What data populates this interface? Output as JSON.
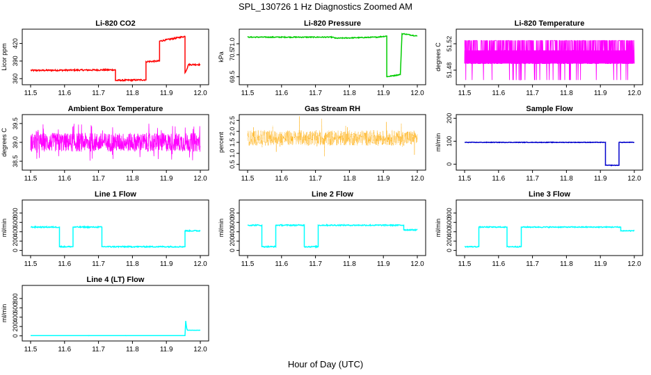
{
  "figure": {
    "title": "SPL_130726  1 Hz Diagnostics Zoomed AM",
    "xlabel": "Hour of Day (UTC)"
  },
  "chart_data": [
    {
      "type": "line",
      "title": "Li-820 CO2",
      "ylabel": "Licor ppm",
      "color": "#ff0000",
      "xlim": [
        11.5,
        12.0
      ],
      "ylim": [
        352,
        442
      ],
      "yticks": [
        "360",
        "390",
        "420"
      ],
      "xticks": [
        "11.5",
        "11.6",
        "11.7",
        "11.8",
        "11.9",
        "12.0"
      ],
      "noise": 1.2,
      "style": "line",
      "x": [
        11.5,
        11.75,
        11.75,
        11.84,
        11.84,
        11.88,
        11.88,
        11.955,
        11.955,
        11.965,
        11.965,
        12.0
      ],
      "y": [
        374,
        375,
        357,
        358,
        389,
        390,
        424,
        432,
        370,
        383,
        384,
        384
      ]
    },
    {
      "type": "line",
      "title": "Li-820 Pressure",
      "ylabel": "kPa",
      "color": "#00cc00",
      "xlim": [
        11.5,
        12.0
      ],
      "ylim": [
        69.2,
        71.6
      ],
      "yticks": [
        "69.5",
        "70.5",
        "71.0"
      ],
      "xticks": [
        "11.5",
        "11.6",
        "11.7",
        "11.8",
        "11.9",
        "12.0"
      ],
      "noise": 0.02,
      "style": "line",
      "x": [
        11.5,
        11.75,
        11.76,
        11.88,
        11.91,
        11.91,
        11.95,
        11.955,
        11.96,
        12.0
      ],
      "y": [
        71.3,
        71.3,
        71.25,
        71.3,
        71.35,
        69.5,
        69.6,
        71.45,
        71.45,
        71.35
      ]
    },
    {
      "type": "line",
      "title": "Li-820 Temperature",
      "ylabel": "degrees C",
      "color": "#ff00ff",
      "xlim": [
        11.5,
        12.0
      ],
      "ylim": [
        51.46,
        51.54
      ],
      "yticks": [
        "51.48",
        "51.52"
      ],
      "xticks": [
        "11.5",
        "11.6",
        "11.7",
        "11.8",
        "11.9",
        "12.0"
      ],
      "noise": 0,
      "style": "band",
      "x": [
        11.5,
        12.0
      ],
      "y": [
        51.5,
        51.5
      ]
    },
    {
      "type": "line",
      "title": "Ambient Box Temperature",
      "ylabel": "degrees C",
      "color": "#ff00ff",
      "xlim": [
        11.5,
        12.0
      ],
      "ylim": [
        38.3,
        39.7
      ],
      "yticks": [
        "38.5",
        "39.0",
        "39.5"
      ],
      "xticks": [
        "11.5",
        "11.6",
        "11.7",
        "11.8",
        "11.9",
        "12.0"
      ],
      "noise": 0.25,
      "style": "dense",
      "x": [
        11.5,
        12.0
      ],
      "y": [
        39.0,
        39.0
      ]
    },
    {
      "type": "line",
      "title": "Gas Stream RH",
      "ylabel": "percent",
      "color": "#ffaa00",
      "xlim": [
        11.5,
        12.0
      ],
      "ylim": [
        0.3,
        2.7
      ],
      "yticks": [
        "0.5",
        "1.0",
        "1.5",
        "2.0",
        "2.5"
      ],
      "xticks": [
        "11.5",
        "11.6",
        "11.7",
        "11.8",
        "11.9",
        "12.0"
      ],
      "noise": 0.35,
      "style": "dots",
      "x": [
        11.5,
        12.0
      ],
      "y": [
        1.7,
        1.7
      ]
    },
    {
      "type": "line",
      "title": "Sample Flow",
      "ylabel": "ml/min",
      "color": "#0000cc",
      "xlim": [
        11.5,
        12.0
      ],
      "ylim": [
        -20,
        210
      ],
      "yticks": [
        "0",
        "100",
        "200"
      ],
      "xticks": [
        "11.5",
        "11.6",
        "11.7",
        "11.8",
        "11.9",
        "12.0"
      ],
      "noise": 1.2,
      "style": "line",
      "x": [
        11.5,
        11.915,
        11.915,
        11.955,
        11.955,
        12.0
      ],
      "y": [
        95,
        95,
        -5,
        -5,
        95,
        95
      ]
    },
    {
      "type": "line",
      "title": "Line 1 Flow",
      "ylabel": "ml/min",
      "color": "#00ffff",
      "xlim": [
        11.5,
        12.0
      ],
      "ylim": [
        -80,
        1050
      ],
      "yticks": [
        "0",
        "200",
        "400",
        "600",
        "800"
      ],
      "xticks": [
        "11.5",
        "11.6",
        "11.7",
        "11.8",
        "11.9",
        "12.0"
      ],
      "noise": 12,
      "style": "line",
      "x": [
        11.5,
        11.585,
        11.585,
        11.625,
        11.625,
        11.71,
        11.71,
        11.955,
        11.955,
        12.0
      ],
      "y": [
        500,
        500,
        80,
        80,
        500,
        500,
        80,
        80,
        420,
        420
      ]
    },
    {
      "type": "line",
      "title": "Line 2 Flow",
      "ylabel": "ml/min",
      "color": "#00ffff",
      "xlim": [
        11.5,
        12.0
      ],
      "ylim": [
        -80,
        1050
      ],
      "yticks": [
        "0",
        "200",
        "400",
        "600",
        "800"
      ],
      "xticks": [
        "11.5",
        "11.6",
        "11.7",
        "11.8",
        "11.9",
        "12.0"
      ],
      "noise": 12,
      "style": "line",
      "x": [
        11.5,
        11.542,
        11.542,
        11.583,
        11.583,
        11.667,
        11.667,
        11.708,
        11.708,
        11.96,
        11.96,
        12.0
      ],
      "y": [
        540,
        540,
        80,
        80,
        540,
        540,
        80,
        80,
        540,
        540,
        440,
        440
      ]
    },
    {
      "type": "line",
      "title": "Line 3 Flow",
      "ylabel": "ml/min",
      "color": "#00ffff",
      "xlim": [
        11.5,
        12.0
      ],
      "ylim": [
        -80,
        1050
      ],
      "yticks": [
        "0",
        "200",
        "400",
        "600",
        "800"
      ],
      "xticks": [
        "11.5",
        "11.6",
        "11.7",
        "11.8",
        "11.9",
        "12.0"
      ],
      "noise": 10,
      "style": "line",
      "x": [
        11.5,
        11.542,
        11.542,
        11.625,
        11.625,
        11.667,
        11.667,
        11.96,
        11.96,
        12.0
      ],
      "y": [
        80,
        80,
        500,
        500,
        80,
        80,
        500,
        500,
        420,
        420
      ]
    },
    {
      "type": "line",
      "title": "Line 4 (LT) Flow",
      "ylabel": "ml/min",
      "color": "#00ffff",
      "xlim": [
        11.5,
        12.0
      ],
      "ylim": [
        -80,
        1050
      ],
      "yticks": [
        "0",
        "200",
        "400",
        "600",
        "800"
      ],
      "xticks": [
        "11.5",
        "11.6",
        "11.7",
        "11.8",
        "11.9",
        "12.0"
      ],
      "noise": 1,
      "style": "line",
      "x": [
        11.5,
        11.955,
        11.957,
        11.96,
        11.962,
        12.0
      ],
      "y": [
        5,
        5,
        320,
        160,
        120,
        120
      ]
    }
  ]
}
